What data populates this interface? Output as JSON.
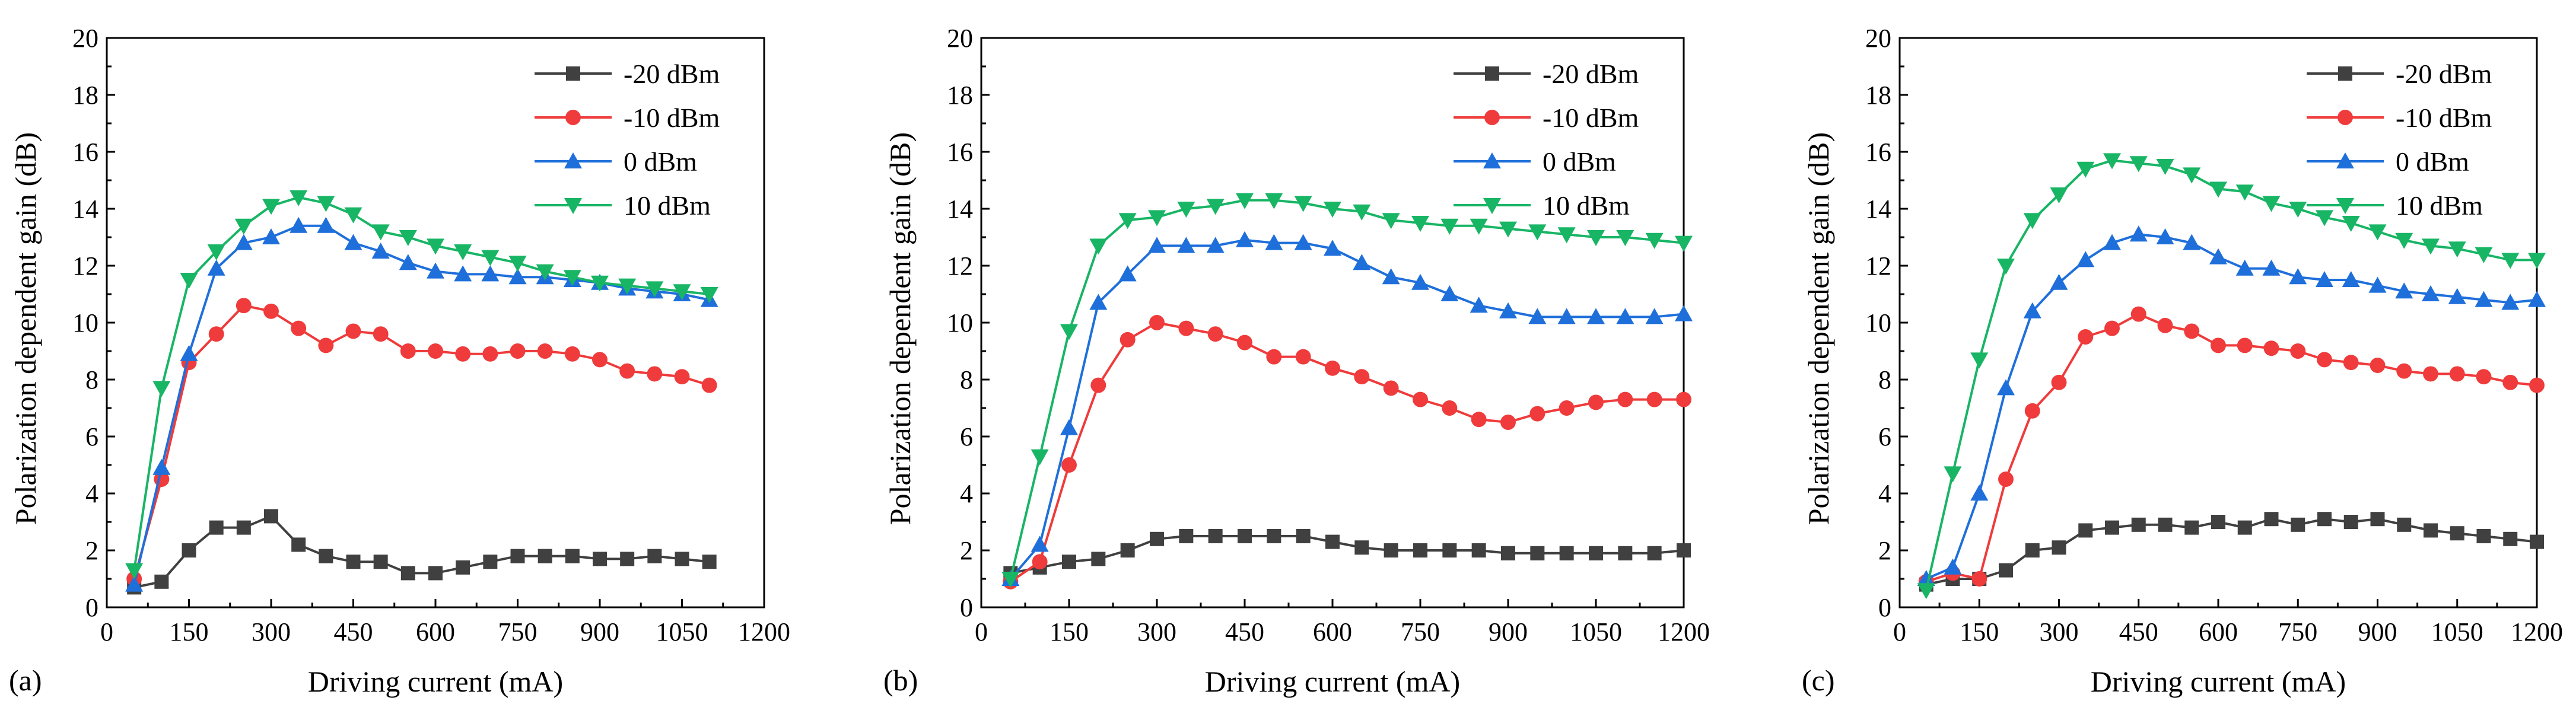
{
  "figure": {
    "panels": [
      "a",
      "b",
      "c"
    ]
  },
  "chart_data": [
    {
      "type": "line",
      "panel_label": "(a)",
      "title": "",
      "xlabel": "Driving current (mA)",
      "ylabel": "Polarization dependent gain (dB)",
      "xlim": [
        0,
        1200
      ],
      "ylim": [
        0,
        20
      ],
      "xticks": [
        "0",
        "150",
        "300",
        "450",
        "600",
        "750",
        "900",
        "1050",
        "1200"
      ],
      "yticks": [
        "0",
        "2",
        "4",
        "6",
        "8",
        "10",
        "12",
        "14",
        "16",
        "18",
        "20"
      ],
      "legend_position": "top-right",
      "x": [
        50,
        100,
        150,
        200,
        250,
        300,
        350,
        400,
        450,
        500,
        550,
        600,
        650,
        700,
        750,
        800,
        850,
        900,
        950,
        1000,
        1050,
        1100
      ],
      "series": [
        {
          "name": "-20 dBm",
          "color": "#404040",
          "marker": "square",
          "values": [
            0.7,
            0.9,
            2.0,
            2.8,
            2.8,
            3.2,
            2.2,
            1.8,
            1.6,
            1.6,
            1.2,
            1.2,
            1.4,
            1.6,
            1.8,
            1.8,
            1.8,
            1.7,
            1.7,
            1.8,
            1.7,
            1.6
          ]
        },
        {
          "name": "-10 dBm",
          "color": "#ef3b3b",
          "marker": "circle",
          "values": [
            1.0,
            4.5,
            8.6,
            9.6,
            10.6,
            10.4,
            9.8,
            9.2,
            9.7,
            9.6,
            9.0,
            9.0,
            8.9,
            8.9,
            9.0,
            9.0,
            8.9,
            8.7,
            8.3,
            8.2,
            8.1,
            7.8
          ]
        },
        {
          "name": "0 dBm",
          "color": "#1f6fdb",
          "marker": "triangle-up",
          "values": [
            0.8,
            4.9,
            8.9,
            11.9,
            12.8,
            13.0,
            13.4,
            13.4,
            12.8,
            12.5,
            12.1,
            11.8,
            11.7,
            11.7,
            11.6,
            11.6,
            11.5,
            11.4,
            11.2,
            11.1,
            11.0,
            10.8
          ]
        },
        {
          "name": "10 dBm",
          "color": "#18b565",
          "marker": "triangle-down",
          "values": [
            1.3,
            7.7,
            11.5,
            12.5,
            13.4,
            14.1,
            14.4,
            14.2,
            13.8,
            13.2,
            13.0,
            12.7,
            12.5,
            12.3,
            12.1,
            11.8,
            11.6,
            11.4,
            11.3,
            11.2,
            11.1,
            11.0
          ]
        }
      ]
    },
    {
      "type": "line",
      "panel_label": "(b)",
      "title": "",
      "xlabel": "Driving current (mA)",
      "ylabel": "Polarization dependent gain (dB)",
      "xlim": [
        0,
        1200
      ],
      "ylim": [
        0,
        20
      ],
      "xticks": [
        "0",
        "150",
        "300",
        "450",
        "600",
        "750",
        "900",
        "1050",
        "1200"
      ],
      "yticks": [
        "0",
        "2",
        "4",
        "6",
        "8",
        "10",
        "12",
        "14",
        "16",
        "18",
        "20"
      ],
      "legend_position": "top-right",
      "x": [
        50,
        100,
        150,
        200,
        250,
        300,
        350,
        400,
        450,
        500,
        550,
        600,
        650,
        700,
        750,
        800,
        850,
        900,
        950,
        1000,
        1050,
        1100,
        1150,
        1200
      ],
      "series": [
        {
          "name": "-20 dBm",
          "color": "#404040",
          "marker": "square",
          "values": [
            1.2,
            1.4,
            1.6,
            1.7,
            2.0,
            2.4,
            2.5,
            2.5,
            2.5,
            2.5,
            2.5,
            2.3,
            2.1,
            2.0,
            2.0,
            2.0,
            2.0,
            1.9,
            1.9,
            1.9,
            1.9,
            1.9,
            1.9,
            2.0
          ]
        },
        {
          "name": "-10 dBm",
          "color": "#ef3b3b",
          "marker": "circle",
          "values": [
            0.9,
            1.6,
            5.0,
            7.8,
            9.4,
            10.0,
            9.8,
            9.6,
            9.3,
            8.8,
            8.8,
            8.4,
            8.1,
            7.7,
            7.3,
            7.0,
            6.6,
            6.5,
            6.8,
            7.0,
            7.2,
            7.3,
            7.3,
            7.3
          ]
        },
        {
          "name": "0 dBm",
          "color": "#1f6fdb",
          "marker": "triangle-up",
          "values": [
            1.0,
            2.2,
            6.3,
            10.7,
            11.7,
            12.7,
            12.7,
            12.7,
            12.9,
            12.8,
            12.8,
            12.6,
            12.1,
            11.6,
            11.4,
            11.0,
            10.6,
            10.4,
            10.2,
            10.2,
            10.2,
            10.2,
            10.2,
            10.3
          ]
        },
        {
          "name": "10 dBm",
          "color": "#18b565",
          "marker": "triangle-down",
          "values": [
            1.0,
            5.3,
            9.7,
            12.7,
            13.6,
            13.7,
            14.0,
            14.1,
            14.3,
            14.3,
            14.2,
            14.0,
            13.9,
            13.6,
            13.5,
            13.4,
            13.4,
            13.3,
            13.2,
            13.1,
            13.0,
            13.0,
            12.9,
            12.8
          ]
        }
      ]
    },
    {
      "type": "line",
      "panel_label": "(c)",
      "title": "",
      "xlabel": "Driving current (mA)",
      "ylabel": "Polarization dependent gain (dB)",
      "xlim": [
        0,
        1200
      ],
      "ylim": [
        0,
        20
      ],
      "xticks": [
        "0",
        "150",
        "300",
        "450",
        "600",
        "750",
        "900",
        "1050",
        "1200"
      ],
      "yticks": [
        "0",
        "2",
        "4",
        "6",
        "8",
        "10",
        "12",
        "14",
        "16",
        "18",
        "20"
      ],
      "legend_position": "top-right",
      "x": [
        50,
        100,
        150,
        200,
        250,
        300,
        350,
        400,
        450,
        500,
        550,
        600,
        650,
        700,
        750,
        800,
        850,
        900,
        950,
        1000,
        1050,
        1100,
        1150,
        1200
      ],
      "series": [
        {
          "name": "-20 dBm",
          "color": "#404040",
          "marker": "square",
          "values": [
            0.8,
            1.0,
            1.0,
            1.3,
            2.0,
            2.1,
            2.7,
            2.8,
            2.9,
            2.9,
            2.8,
            3.0,
            2.8,
            3.1,
            2.9,
            3.1,
            3.0,
            3.1,
            2.9,
            2.7,
            2.6,
            2.5,
            2.4,
            2.3
          ]
        },
        {
          "name": "-10 dBm",
          "color": "#ef3b3b",
          "marker": "circle",
          "values": [
            0.9,
            1.2,
            1.0,
            4.5,
            6.9,
            7.9,
            9.5,
            9.8,
            10.3,
            9.9,
            9.7,
            9.2,
            9.2,
            9.1,
            9.0,
            8.7,
            8.6,
            8.5,
            8.3,
            8.2,
            8.2,
            8.1,
            7.9,
            7.8
          ]
        },
        {
          "name": "0 dBm",
          "color": "#1f6fdb",
          "marker": "triangle-up",
          "values": [
            1.0,
            1.4,
            4.0,
            7.7,
            10.4,
            11.4,
            12.2,
            12.8,
            13.1,
            13.0,
            12.8,
            12.3,
            11.9,
            11.9,
            11.6,
            11.5,
            11.5,
            11.3,
            11.1,
            11.0,
            10.9,
            10.8,
            10.7,
            10.8
          ]
        },
        {
          "name": "10 dBm",
          "color": "#18b565",
          "marker": "triangle-down",
          "values": [
            0.6,
            4.7,
            8.7,
            12.0,
            13.6,
            14.5,
            15.4,
            15.7,
            15.6,
            15.5,
            15.2,
            14.7,
            14.6,
            14.2,
            14.0,
            13.7,
            13.5,
            13.2,
            12.9,
            12.7,
            12.6,
            12.4,
            12.2,
            12.2
          ]
        }
      ]
    }
  ]
}
